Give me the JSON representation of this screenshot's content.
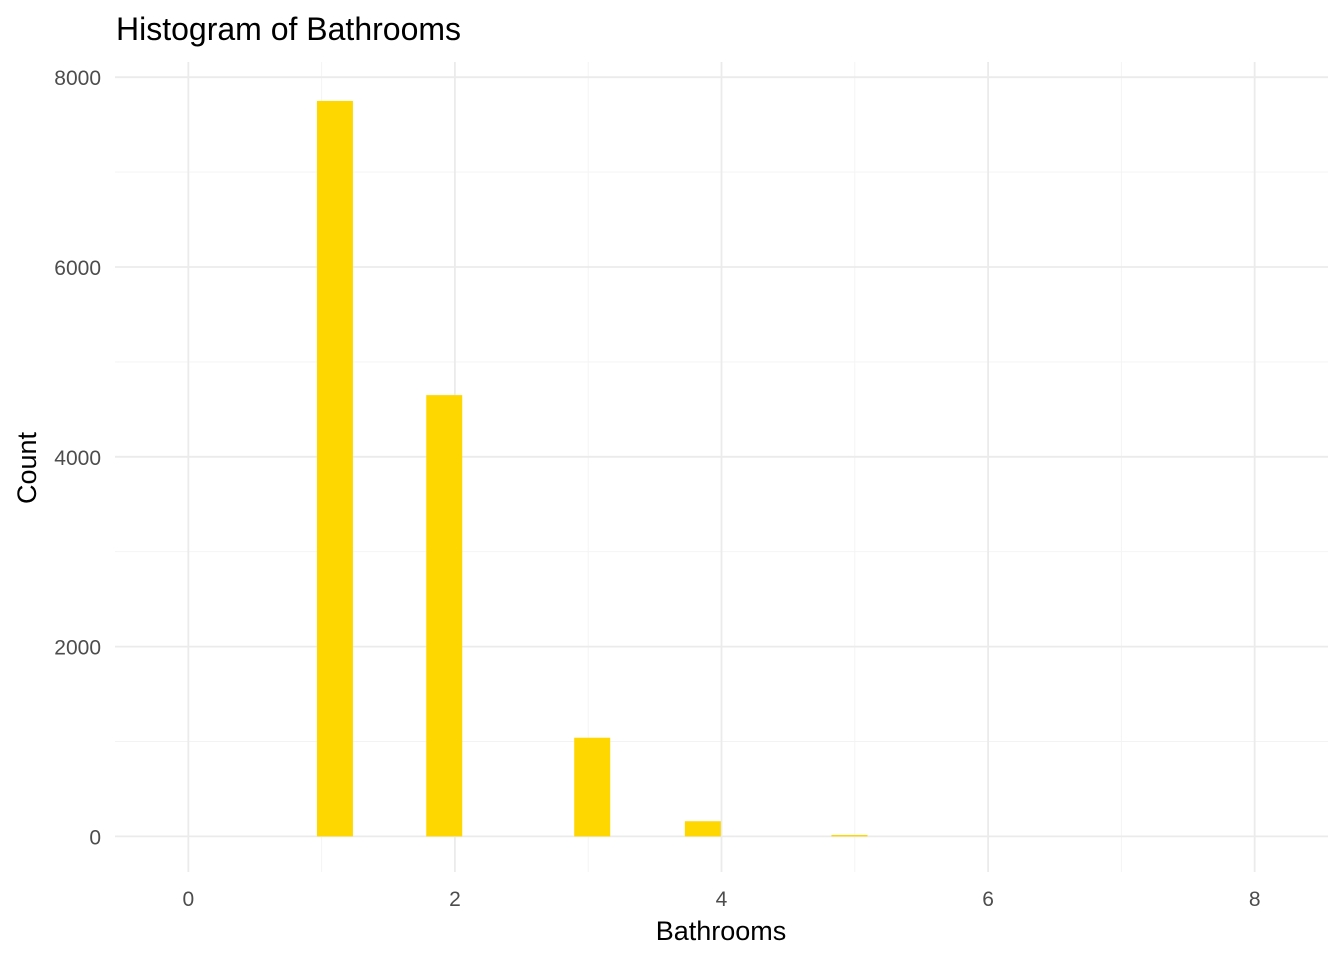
{
  "chart_data": {
    "type": "bar",
    "title": "Histogram of Bathrooms",
    "xlabel": "Bathrooms",
    "ylabel": "Count",
    "xlim": [
      -0.55,
      8.55
    ],
    "ylim": [
      -375,
      8160
    ],
    "x_ticks": [
      0,
      2,
      4,
      6,
      8
    ],
    "y_ticks": [
      0,
      2000,
      4000,
      6000,
      8000
    ],
    "x_minor_ticks": [
      1,
      3,
      5,
      7
    ],
    "y_minor_ticks": [
      1000,
      3000,
      5000,
      7000
    ],
    "grid": true,
    "legend": "none",
    "bar_color": "#FFD700",
    "bins": [
      {
        "x_start": -0.135,
        "x_end": 0.135,
        "count": 0
      },
      {
        "x_start": 0.965,
        "x_end": 1.235,
        "count": 7750
      },
      {
        "x_start": 1.785,
        "x_end": 2.055,
        "count": 4650
      },
      {
        "x_start": 2.895,
        "x_end": 3.165,
        "count": 1040
      },
      {
        "x_start": 3.725,
        "x_end": 3.995,
        "count": 160
      },
      {
        "x_start": 4.825,
        "x_end": 5.095,
        "count": 15
      },
      {
        "x_start": 5.925,
        "x_end": 6.195,
        "count": 0
      },
      {
        "x_start": 7.025,
        "x_end": 7.295,
        "count": 0
      },
      {
        "x_start": 7.865,
        "x_end": 8.135,
        "count": 0
      }
    ]
  }
}
